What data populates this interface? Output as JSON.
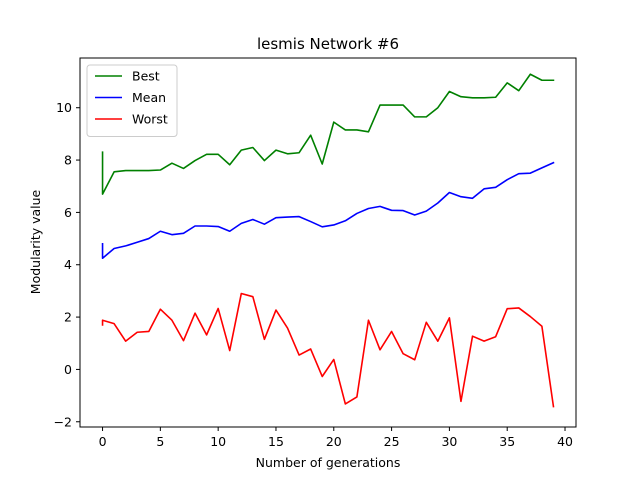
{
  "chart_data": {
    "type": "line",
    "title": "lesmis Network #6",
    "xlabel": "Number of generations",
    "ylabel": "Modularity value",
    "xlim": [
      -1.95,
      40.95
    ],
    "ylim": [
      -2.2,
      11.9
    ],
    "xticks": [
      0,
      5,
      10,
      15,
      20,
      25,
      30,
      35,
      40
    ],
    "yticks": [
      -2,
      0,
      2,
      4,
      6,
      8,
      10
    ],
    "grid": false,
    "legend_position": "top-left",
    "series": [
      {
        "name": "Best",
        "color": "#008000",
        "x": [
          0,
          0,
          1,
          2,
          3,
          4,
          5,
          6,
          7,
          8,
          9,
          10,
          11,
          12,
          13,
          14,
          15,
          16,
          17,
          18,
          19,
          20,
          21,
          22,
          23,
          24,
          25,
          26,
          27,
          28,
          29,
          30,
          31,
          32,
          33,
          34,
          35,
          36,
          37,
          38,
          39
        ],
        "y": [
          8.3,
          6.7,
          7.55,
          7.6,
          7.6,
          7.6,
          7.62,
          7.88,
          7.68,
          7.98,
          8.22,
          8.22,
          7.82,
          8.38,
          8.48,
          7.98,
          8.38,
          8.24,
          8.28,
          8.95,
          7.85,
          9.45,
          9.15,
          9.15,
          9.08,
          10.1,
          10.1,
          10.1,
          9.65,
          9.65,
          10.0,
          10.62,
          10.42,
          10.38,
          10.38,
          10.4,
          10.95,
          10.65,
          11.28,
          11.05,
          11.05
        ]
      },
      {
        "name": "Mean",
        "color": "#0000ff",
        "x": [
          0,
          0,
          1,
          2,
          3,
          4,
          5,
          6,
          7,
          8,
          9,
          10,
          11,
          12,
          13,
          14,
          15,
          16,
          17,
          18,
          19,
          20,
          21,
          22,
          23,
          24,
          25,
          26,
          27,
          28,
          29,
          30,
          31,
          32,
          33,
          34,
          35,
          36,
          37,
          38,
          39
        ],
        "y": [
          4.8,
          4.25,
          4.62,
          4.72,
          4.86,
          5.0,
          5.28,
          5.15,
          5.2,
          5.48,
          5.48,
          5.46,
          5.28,
          5.58,
          5.73,
          5.55,
          5.8,
          5.82,
          5.84,
          5.65,
          5.45,
          5.52,
          5.68,
          5.96,
          6.15,
          6.23,
          6.08,
          6.07,
          5.9,
          6.05,
          6.36,
          6.76,
          6.6,
          6.54,
          6.9,
          6.96,
          7.25,
          7.48,
          7.5,
          7.7,
          7.9
        ]
      },
      {
        "name": "Worst",
        "color": "#ff0000",
        "x": [
          0,
          0,
          1,
          2,
          3,
          4,
          5,
          6,
          7,
          8,
          9,
          10,
          11,
          12,
          13,
          14,
          15,
          16,
          17,
          18,
          19,
          20,
          21,
          22,
          23,
          24,
          25,
          26,
          27,
          28,
          29,
          30,
          31,
          32,
          33,
          34,
          35,
          36,
          37,
          38,
          39
        ],
        "y": [
          1.7,
          1.88,
          1.75,
          1.08,
          1.42,
          1.45,
          2.3,
          1.88,
          1.1,
          2.15,
          1.32,
          2.33,
          0.72,
          2.9,
          2.78,
          1.15,
          2.27,
          1.58,
          0.55,
          0.78,
          -0.27,
          0.38,
          -1.32,
          -1.05,
          1.88,
          0.75,
          1.45,
          0.6,
          0.37,
          1.8,
          1.08,
          1.97,
          -1.22,
          1.27,
          1.08,
          1.25,
          2.32,
          2.35,
          2.02,
          1.65,
          -1.42
        ]
      }
    ]
  }
}
